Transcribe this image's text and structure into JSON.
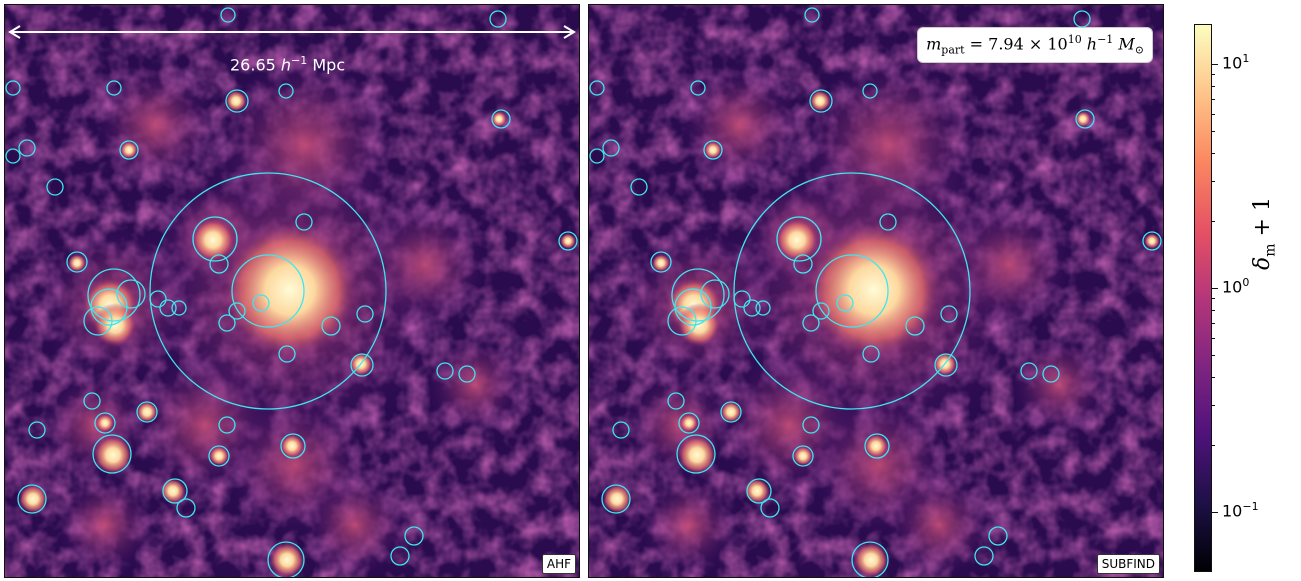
{
  "panels": {
    "left": {
      "label": "AHF"
    },
    "right": {
      "label": "SUBFIND"
    }
  },
  "annotations": {
    "scale_prefix": "26.65",
    "scale_h": "h",
    "scale_exp": "−1",
    "scale_unit": "Mpc",
    "mass_m": "m",
    "mass_sub": "part",
    "mass_mid": " = 7.94 × 10",
    "mass_exp10": "10",
    "mass_h": " h",
    "mass_exp": "−1",
    "mass_M": " M",
    "mass_sun": "⊙"
  },
  "colorbar": {
    "title": "δ",
    "title_sub": "m",
    "title_tail": " + 1",
    "ticks": [
      {
        "base": "10",
        "exp": "1"
      },
      {
        "base": "10",
        "exp": "0"
      },
      {
        "base": "10",
        "exp": "−1"
      }
    ],
    "colormap": "magma",
    "scale": "log"
  },
  "colors": {
    "halo_circle": "#3ee6f0",
    "arrow": "#ffffff"
  }
}
